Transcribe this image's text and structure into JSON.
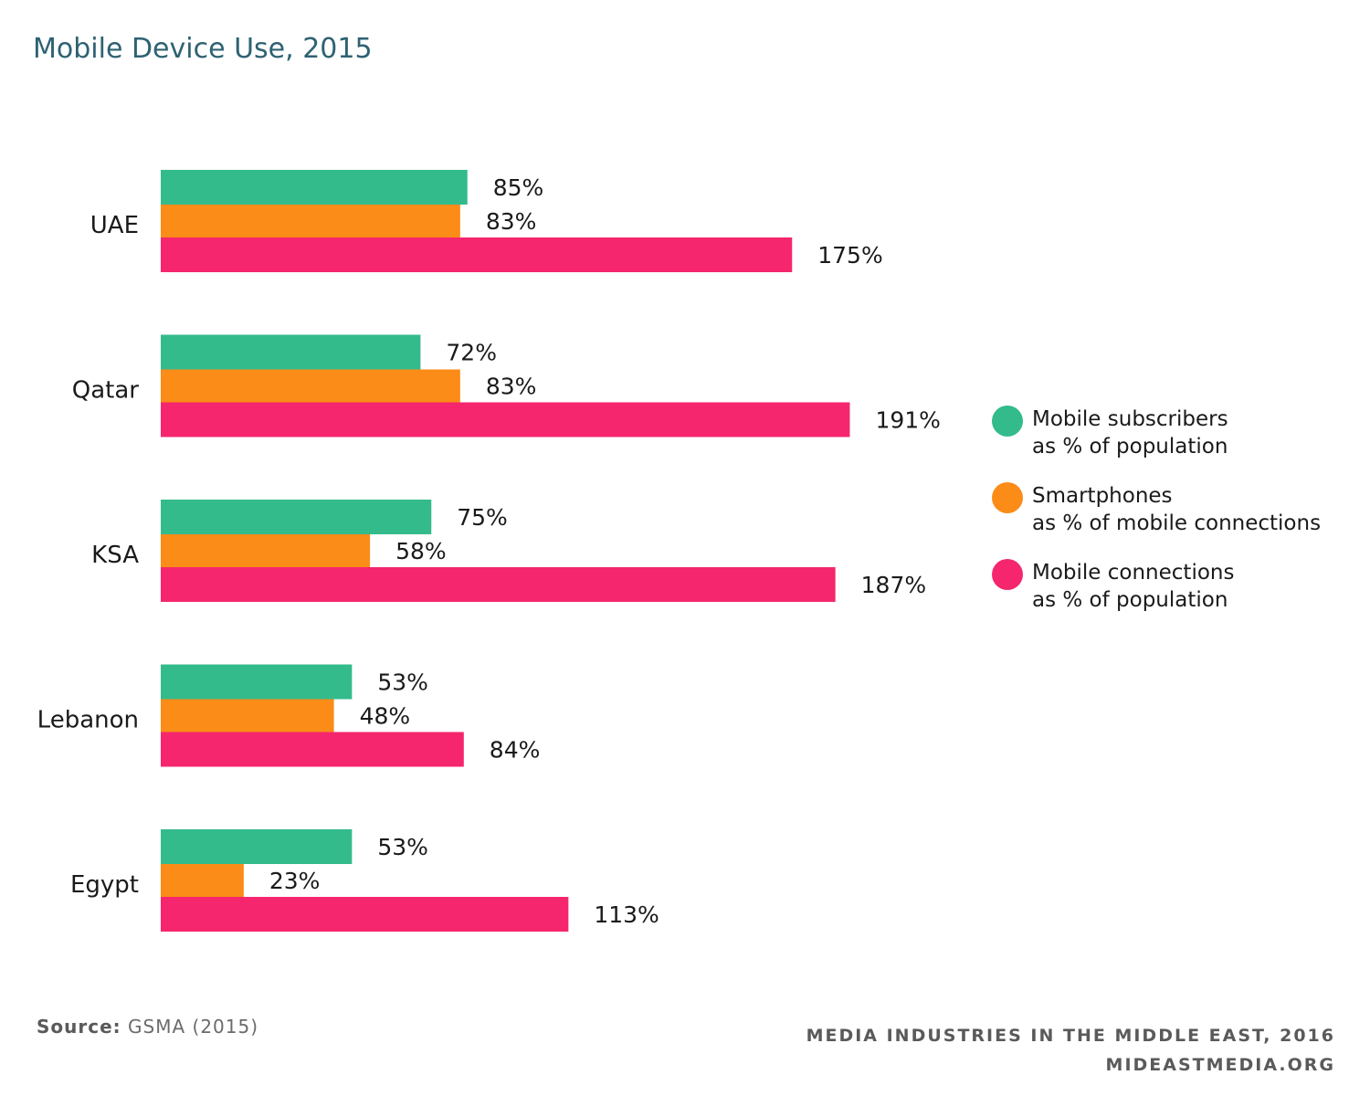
{
  "title": "Mobile Device Use, 2015",
  "chart_data": {
    "type": "bar",
    "orientation": "horizontal",
    "categories": [
      "UAE",
      "Qatar",
      "KSA",
      "Lebanon",
      "Egypt"
    ],
    "series": [
      {
        "name": "Mobile subscribers as % of population",
        "values": [
          85,
          72,
          75,
          53,
          53
        ],
        "color": "#33bb8c"
      },
      {
        "name": "Smartphones as % of mobile connections",
        "values": [
          83,
          83,
          58,
          48,
          23
        ],
        "color": "#fb8c17"
      },
      {
        "name": "Mobile connections as % of population",
        "values": [
          175,
          191,
          187,
          84,
          113
        ],
        "color": "#f5266d"
      }
    ],
    "value_suffix": "%",
    "grid": false,
    "legend_position": "right"
  },
  "legend": [
    {
      "line1": "Mobile subscribers",
      "line2": "as % of population",
      "color": "#33bb8c"
    },
    {
      "line1": "Smartphones",
      "line2": "as % of mobile connections",
      "color": "#fb8c17"
    },
    {
      "line1": "Mobile connections",
      "line2": "as % of population",
      "color": "#f5266d"
    }
  ],
  "source": {
    "label": "Source:",
    "text": "GSMA (2015)"
  },
  "footer": {
    "line1": "MEDIA INDUSTRIES IN THE MIDDLE EAST, 2016",
    "line2": "MIDEASTMEDIA.ORG"
  }
}
